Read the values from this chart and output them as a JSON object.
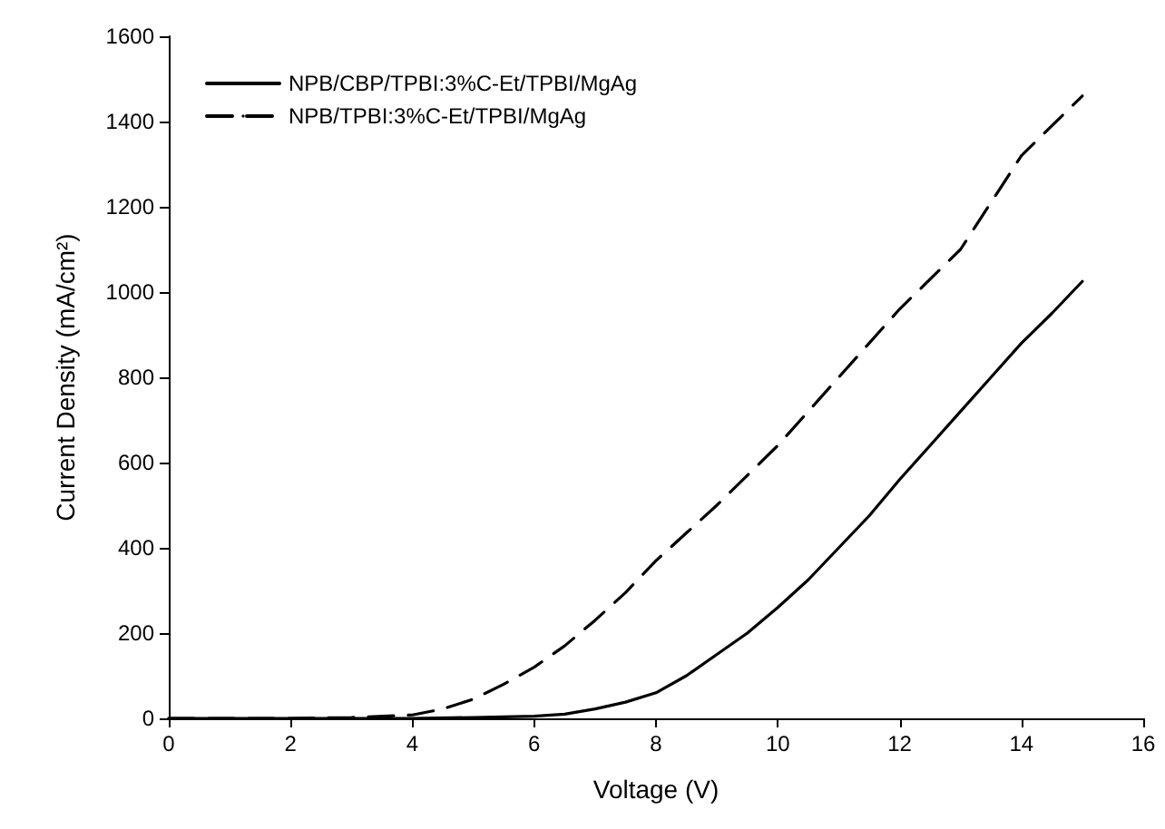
{
  "chart_data": {
    "type": "line",
    "xlabel": "Voltage (V)",
    "ylabel": "Current Density (mA/cm²)",
    "xlim": [
      0,
      16
    ],
    "xticks": [
      0,
      2,
      4,
      6,
      8,
      10,
      12,
      14,
      16
    ],
    "ylim": [
      0,
      1600
    ],
    "yticks": [
      0,
      200,
      400,
      600,
      800,
      1000,
      1200,
      1400,
      1600
    ],
    "grid": false,
    "legend": "top left",
    "marker": "none",
    "series": [
      {
        "name": "NPB/CBP/TPBI:3%C-Et/TPBI/MgAg",
        "color": "#000000",
        "line_style": "solid",
        "x": [
          0,
          2,
          4,
          5,
          6,
          6.5,
          7,
          7.5,
          8,
          8.5,
          9,
          9.5,
          10,
          10.5,
          11,
          11.5,
          12,
          12.5,
          13,
          13.5,
          14,
          14.5,
          15
        ],
        "values": [
          0,
          0,
          0,
          2,
          5,
          10,
          22,
          38,
          60,
          100,
          150,
          200,
          260,
          325,
          400,
          475,
          560,
          640,
          720,
          800,
          880,
          950,
          1025
        ]
      },
      {
        "name": "NPB/TPBI:3%C-Et/TPBI/MgAg",
        "color": "#000000",
        "line_style": "dashed",
        "x": [
          0,
          2,
          3,
          4,
          4.5,
          5,
          5.5,
          6,
          6.5,
          7,
          7.5,
          8,
          8.5,
          9,
          9.5,
          10,
          10.5,
          11,
          11.5,
          12,
          12.5,
          13,
          13.5,
          14,
          14.5,
          15
        ],
        "values": [
          0,
          0,
          2,
          8,
          22,
          45,
          80,
          120,
          170,
          230,
          295,
          370,
          435,
          500,
          570,
          640,
          720,
          800,
          880,
          960,
          1030,
          1100,
          1210,
          1320,
          1390,
          1460
        ]
      }
    ]
  }
}
